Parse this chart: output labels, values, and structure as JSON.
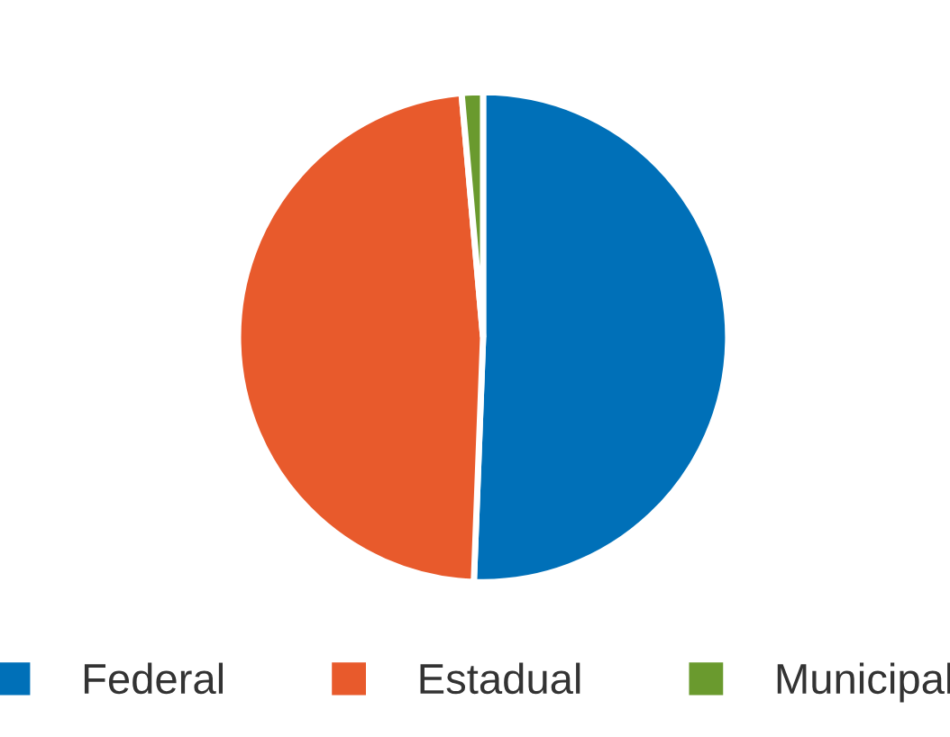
{
  "chart_data": {
    "type": "pie",
    "categories": [
      "Federal",
      "Estadual",
      "Municipal"
    ],
    "values": [
      50.6,
      48.0,
      1.4
    ],
    "colors": [
      "#0070b8",
      "#e85a2c",
      "#6a9a2e"
    ],
    "legend": "bottom"
  }
}
